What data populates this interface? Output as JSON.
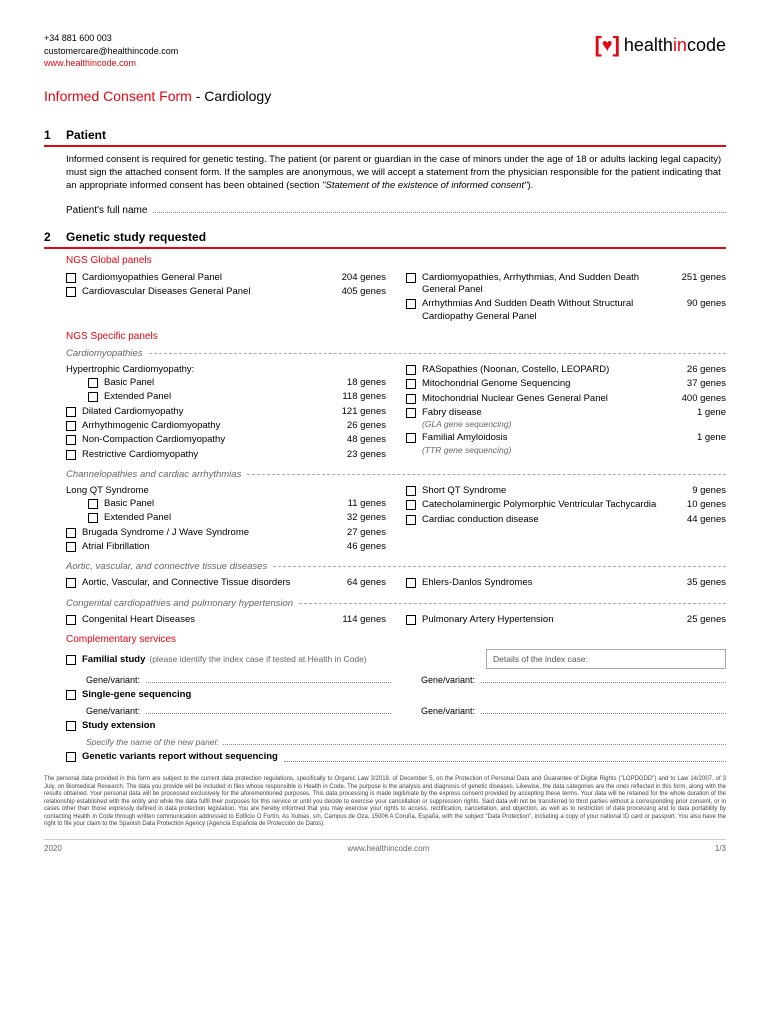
{
  "header": {
    "phone": "+34 881 600 003",
    "email": "customercare@healthincode.com",
    "website": "www.healthincode.com",
    "logo_health": "health",
    "logo_in": "in",
    "logo_code": "code"
  },
  "title": {
    "red": "Informed Consent Form",
    "dash": " - ",
    "black": "Cardiology"
  },
  "s1": {
    "num": "1",
    "title": "Patient",
    "intro": "Informed consent is required for genetic testing. The patient (or parent or guardian in the case of minors under the age of 18 or adults lacking legal capacity) must sign the attached consent form. If the samples are anonymous, we will accept a statement from the physician responsible for the patient indicating that an appropriate informed consent has been obtained (section ",
    "intro_em": "\"Statement of the existence of informed consent\"",
    "intro_end": ").",
    "name_label": "Patient's full name"
  },
  "s2": {
    "num": "2",
    "title": "Genetic study requested",
    "global_header": "NGS Global panels",
    "specific_header": "NGS Specific panels",
    "comp_header": "Complementary services",
    "global_left": [
      {
        "label": "Cardiomyopathies General Panel",
        "genes": "204 genes"
      },
      {
        "label": "Cardiovascular Diseases General Panel",
        "genes": "405 genes"
      }
    ],
    "global_right": [
      {
        "label": "Cardiomyopathies, Arrhythmias, And Sudden Death General Panel",
        "genes": "251 genes"
      },
      {
        "label": "Arrhythmias And Sudden Death Without Structural Cardiopathy General Panel",
        "genes": "90 genes"
      }
    ],
    "cat1": "Cardiomyopathies",
    "cat1_left_group": "Hypertrophic Cardiomyopathy:",
    "cat1_left_sub": [
      {
        "label": "Basic Panel",
        "genes": "18 genes"
      },
      {
        "label": "Extended Panel",
        "genes": "118 genes"
      }
    ],
    "cat1_left": [
      {
        "label": "Dilated Cardiomyopathy",
        "genes": "121 genes"
      },
      {
        "label": "Arrhythmogenic Cardiomyopathy",
        "genes": "26 genes"
      },
      {
        "label": "Non-Compaction Cardiomyopathy",
        "genes": "48 genes"
      },
      {
        "label": "Restrictive Cardiomyopathy",
        "genes": "23 genes"
      }
    ],
    "cat1_right": [
      {
        "label": "RASopathies (Noonan, Costello, LEOPARD)",
        "genes": "26 genes"
      },
      {
        "label": "Mitochondrial Genome Sequencing",
        "genes": "37 genes"
      },
      {
        "label": "Mitochondrial Nuclear Genes General Panel",
        "genes": "400 genes"
      },
      {
        "label": "Fabry disease",
        "sub": "(GLA gene sequencing)",
        "genes": "1 gene"
      },
      {
        "label": "Familial Amyloidosis",
        "sub": "(TTR gene sequencing)",
        "genes": "1 gene"
      }
    ],
    "cat2": "Channelopathies and cardiac arrhythmias",
    "cat2_left_group": "Long QT Syndrome",
    "cat2_left_sub": [
      {
        "label": "Basic Panel",
        "genes": "11 genes"
      },
      {
        "label": "Extended Panel",
        "genes": "32 genes"
      }
    ],
    "cat2_left": [
      {
        "label": "Brugada Syndrome / J Wave Syndrome",
        "genes": "27 genes"
      },
      {
        "label": "Atrial Fibrillation",
        "genes": "46 genes"
      }
    ],
    "cat2_right": [
      {
        "label": "Short QT Syndrome",
        "genes": "9 genes"
      },
      {
        "label": "Catecholaminergic Polymorphic Ventricular Tachycardia",
        "genes": "10 genes"
      },
      {
        "label": "Cardiac conduction disease",
        "genes": "44 genes"
      }
    ],
    "cat3": "Aortic, vascular, and connective tissue diseases",
    "cat3_left": [
      {
        "label": "Aortic, Vascular, and Connective Tissue disorders",
        "genes": "64 genes"
      }
    ],
    "cat3_right": [
      {
        "label": "Ehlers-Danlos Syndromes",
        "genes": "35 genes"
      }
    ],
    "cat4": "Congenital cardiopathies and pulmonary hypertension",
    "cat4_left": [
      {
        "label": "Congenital Heart Diseases",
        "genes": "114 genes"
      }
    ],
    "cat4_right": [
      {
        "label": "Pulmonary Artery Hypertension",
        "genes": "25 genes"
      }
    ],
    "comp": {
      "familial": "Familial study",
      "familial_hint": "(please identify the index case if tested at Health in Code)",
      "details_label": "Details of the index case:",
      "gv": "Gene/variant:",
      "single": "Single-gene sequencing",
      "ext": "Study extension",
      "ext_hint": "Specify the name of the new panel:",
      "report": "Genetic variants report without sequencing"
    }
  },
  "fineprint": "The personal data provided in this form are subject to the current data protection regulations, specifically to Organic Law 3/2018, of December 5, on the Protection of Personal Data and Guarantee of Digital Rights (\"LOPDGDD\") and to Law 14/2007, of 3 July, on Biomedical Research. The data you provide will be included in files whose responsible is Health in Code. The purpose is the analysis and diagnosis of genetic diseases. Likewise, the data categories are the ones reflected in this form, along with the results obtained. Your personal data will be processed exclusively for the aforementioned purposes. This data processing is made legitimate by the express consent provided by accepting these terms. Your data will be retained for the whole duration of the relationship established with the entity and while the data fulfil their purposes for this service or until you decide to exercise your cancellation or suppression rights. Said data will not be transferred to third parties without a corresponding prior consent, or in cases other than those expressly defined in data protection legislation. You are hereby informed that you may exercise your rights to access, rectification, cancellation, and objection, as well as to restriction of data processing and to data portability by contacting Health in Code through written communication addressed to Edificio O Fortín, As Xubias, s/n, Campus de Oza, 15006 A Coruña, España, with the subject \"Data Protection\", including a copy of your national ID card or passport. You also have the right to file your claim to the Spanish Data Protection Agency (Agencia Española de Protección de Datos).",
  "footer": {
    "year": "2020",
    "site": "www.healthincode.com",
    "page": "1/3"
  }
}
